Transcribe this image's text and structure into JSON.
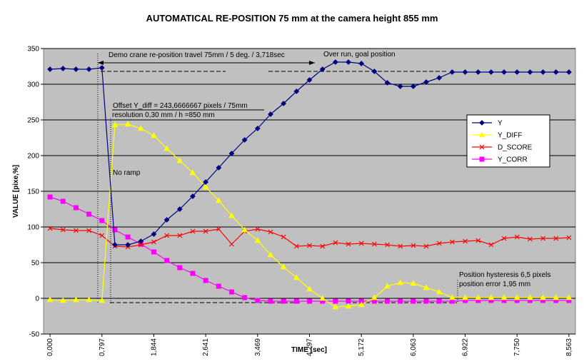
{
  "chart_data": {
    "type": "line",
    "title": "AUTOMATICAL RE-POSITION 75 mm at the camera height 855 mm",
    "xlabel": "TIME [sec]",
    "ylabel": "VALUE [pixe,%]",
    "ylim": [
      -50,
      350
    ],
    "yticks": [
      -50,
      0,
      50,
      100,
      150,
      200,
      250,
      300,
      350
    ],
    "x_tick_labels": [
      "0,000",
      "0,797",
      "1,844",
      "2,641",
      "3,469",
      "4,297",
      "5,172",
      "6,063",
      "6,922",
      "7,750",
      "8,563"
    ],
    "x_tick_index": [
      0,
      4,
      8,
      12,
      16,
      20,
      24,
      28,
      32,
      36,
      40
    ],
    "grid": true,
    "legend_position": "right",
    "series": [
      {
        "name": "Y",
        "color": "#000080",
        "marker": "diamond",
        "values": [
          321,
          322,
          321,
          321,
          323,
          75,
          75,
          80,
          90,
          110,
          125,
          143,
          163,
          183,
          203,
          222,
          238,
          258,
          273,
          290,
          306,
          321,
          331,
          331,
          329,
          318,
          302,
          297,
          297,
          303,
          309,
          317,
          317,
          317,
          317,
          317,
          317,
          317,
          317,
          317,
          317
        ]
      },
      {
        "name": "Y_DIFF",
        "color": "#ffff00",
        "marker": "triangle",
        "values": [
          -2,
          -3,
          -2,
          -2,
          -3,
          243,
          244,
          238,
          228,
          210,
          193,
          176,
          156,
          137,
          116,
          96,
          81,
          61,
          44,
          29,
          13,
          0,
          -12,
          -11,
          -9,
          1,
          17,
          22,
          21,
          15,
          9,
          1,
          1,
          1,
          1,
          1,
          1,
          1,
          1,
          1,
          1
        ]
      },
      {
        "name": "D_SCORE",
        "color": "#ff0000",
        "marker": "x",
        "values": [
          98,
          96,
          95,
          95,
          88,
          73,
          72,
          75,
          79,
          88,
          88,
          94,
          94,
          97,
          76,
          94,
          97,
          93,
          86,
          73,
          74,
          73,
          78,
          76,
          77,
          76,
          75,
          73,
          74,
          73,
          77,
          79,
          80,
          81,
          75,
          84,
          86,
          83,
          84,
          84,
          85
        ]
      },
      {
        "name": "Y_CORR",
        "color": "#ff00ff",
        "marker": "square",
        "values": [
          142,
          136,
          127,
          118,
          109,
          96,
          86,
          76,
          65,
          53,
          43,
          35,
          25,
          17,
          9,
          1,
          -3,
          -4,
          -4,
          -4,
          -4,
          -4,
          -4,
          -4,
          -4,
          -4,
          -4,
          -4,
          -4,
          -4,
          -4,
          -4,
          -3,
          -3,
          -3,
          -3,
          -3,
          -3,
          -3,
          -3,
          -3
        ]
      }
    ],
    "annotations": {
      "travel": "Demo crane re-position travel 75mm  / 5 deg.  / 3,718sec",
      "overrun": "Over run, goal position",
      "offset1": "Offset Y_diff = 243,6666667 pixels / 75mm",
      "offset2": "resolution 0,30 mm  / h =850 mm",
      "noramp": "No ramp",
      "hyst1": "Position hysteresis 6,5 pixels",
      "hyst2": "position error 1,95 mm"
    }
  }
}
